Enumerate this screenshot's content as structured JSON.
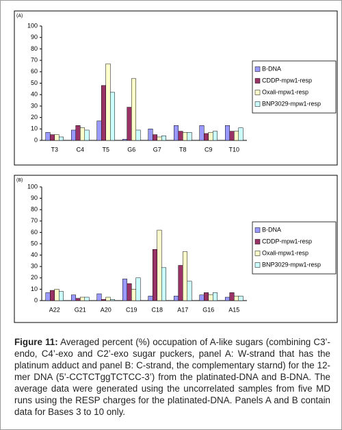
{
  "chart_data": [
    {
      "type": "bar",
      "label": "(A)",
      "categories": [
        "T3",
        "C4",
        "T5",
        "G6",
        "G7",
        "T8",
        "C9",
        "T10"
      ],
      "series": [
        {
          "name": "B-DNA",
          "color": "#9999ff",
          "values": [
            7,
            9,
            17,
            1,
            10,
            13,
            13,
            13
          ]
        },
        {
          "name": "CDDP-mpw1-resp",
          "color": "#993366",
          "values": [
            5,
            13,
            48,
            29,
            5,
            8,
            6,
            8
          ]
        },
        {
          "name": "Oxali-mpw1-resp",
          "color": "#ffffcc",
          "values": [
            5,
            11,
            67,
            54,
            3,
            7,
            7,
            8
          ]
        },
        {
          "name": "BNP3029-mpw1-resp",
          "color": "#ccffff",
          "values": [
            3,
            9,
            42,
            9,
            4,
            7,
            8,
            11
          ]
        }
      ],
      "ylim": [
        0,
        100
      ],
      "yticks": [
        0,
        10,
        20,
        30,
        40,
        50,
        60,
        70,
        80,
        90,
        100
      ],
      "grid": false,
      "legend": "right"
    },
    {
      "type": "bar",
      "label": "(B)",
      "categories": [
        "A22",
        "G21",
        "A20",
        "C19",
        "C18",
        "A17",
        "G16",
        "A15"
      ],
      "series": [
        {
          "name": "B-DNA",
          "color": "#9999ff",
          "values": [
            7,
            5,
            6,
            19,
            4,
            4,
            5,
            3
          ]
        },
        {
          "name": "CDDP-mpw1-resp",
          "color": "#993366",
          "values": [
            9,
            2,
            1,
            15,
            45,
            31,
            7,
            7
          ]
        },
        {
          "name": "Oxali-mpw1-resp",
          "color": "#ffffcc",
          "values": [
            10,
            3,
            3,
            10,
            62,
            43,
            5,
            4
          ]
        },
        {
          "name": "BNP3029-mpw1-resp",
          "color": "#ccffff",
          "values": [
            8,
            3,
            1,
            20,
            29,
            17,
            7,
            4
          ]
        }
      ],
      "ylim": [
        0,
        100
      ],
      "yticks": [
        0,
        10,
        20,
        30,
        40,
        50,
        60,
        70,
        80,
        90,
        100
      ],
      "grid": false,
      "legend": "right"
    }
  ],
  "caption": {
    "label": "Figure 11:",
    "text": "Averaged percent (%) occupation of A-like sugars (combining C3’-endo, C4’-exo and C2’-exo sugar puckers, panel A: W-strand that has the platinum adduct and panel B: C-strand, the complementary starnd) for the 12-mer DNA (5’-CCTCTggTCTCC-3’) from the platinated-DNA and B-DNA. The average data were generated using the uncorrelated samples from five MD runs using the RESP charges for the platinated-DNA. Panels A and B contain data for Bases 3 to 10 only."
  }
}
